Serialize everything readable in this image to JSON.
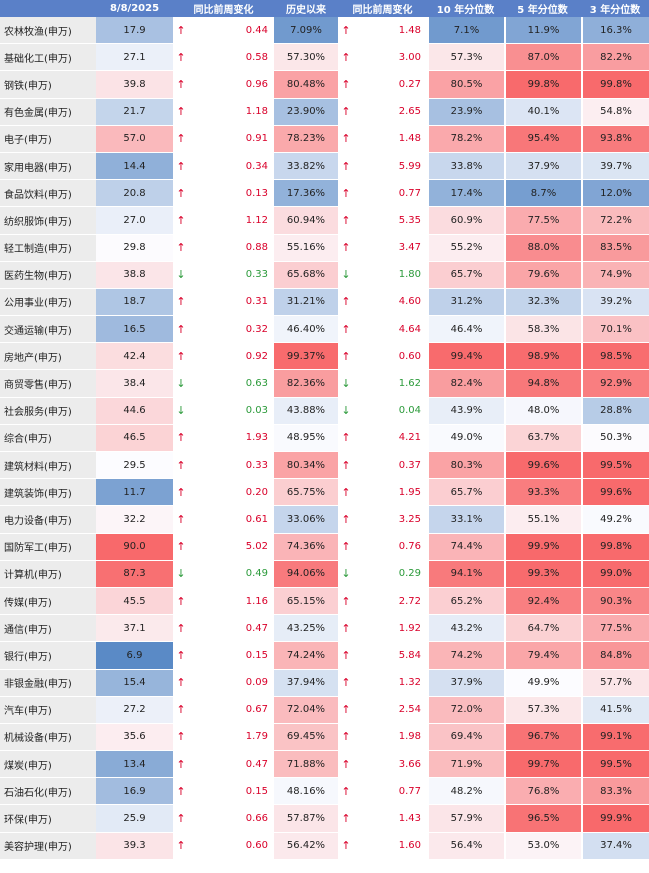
{
  "header": {
    "col0": "",
    "col1": "8/8/2025",
    "col2": "同比前周变化",
    "col3": "历史以来",
    "col4": "同比前周变化",
    "col5": "10 年分位数",
    "col6": "5 年分位数",
    "col7": "3 年分位数"
  },
  "colors": {
    "high": "#f8696b",
    "mid": "#fcfcff",
    "low": "#5a8ac6",
    "up": "#d9002a",
    "down": "#2b9a3a"
  },
  "rows": [
    {
      "name": "农林牧渔(申万)",
      "pe": "17.9",
      "a1": "↑",
      "d1": "up",
      "c1": "0.44",
      "hist": "7.09%",
      "a2": "↑",
      "d2": "up",
      "c2": "1.48",
      "p10": "7.1%",
      "p5": "11.9%",
      "p3": "16.3%"
    },
    {
      "name": "基础化工(申万)",
      "pe": "27.1",
      "a1": "↑",
      "d1": "up",
      "c1": "0.58",
      "hist": "57.30%",
      "a2": "↑",
      "d2": "up",
      "c2": "3.00",
      "p10": "57.3%",
      "p5": "87.0%",
      "p3": "82.2%"
    },
    {
      "name": "钢铁(申万)",
      "pe": "39.8",
      "a1": "↑",
      "d1": "up",
      "c1": "0.96",
      "hist": "80.48%",
      "a2": "↑",
      "d2": "up",
      "c2": "0.27",
      "p10": "80.5%",
      "p5": "99.8%",
      "p3": "99.8%"
    },
    {
      "name": "有色金属(申万)",
      "pe": "21.7",
      "a1": "↑",
      "d1": "up",
      "c1": "1.18",
      "hist": "23.90%",
      "a2": "↑",
      "d2": "up",
      "c2": "2.65",
      "p10": "23.9%",
      "p5": "40.1%",
      "p3": "54.8%"
    },
    {
      "name": "电子(申万)",
      "pe": "57.0",
      "a1": "↑",
      "d1": "up",
      "c1": "0.91",
      "hist": "78.23%",
      "a2": "↑",
      "d2": "up",
      "c2": "1.48",
      "p10": "78.2%",
      "p5": "95.4%",
      "p3": "93.8%"
    },
    {
      "name": "家用电器(申万)",
      "pe": "14.4",
      "a1": "↑",
      "d1": "up",
      "c1": "0.34",
      "hist": "33.82%",
      "a2": "↑",
      "d2": "up",
      "c2": "5.99",
      "p10": "33.8%",
      "p5": "37.9%",
      "p3": "39.7%"
    },
    {
      "name": "食品饮料(申万)",
      "pe": "20.8",
      "a1": "↑",
      "d1": "up",
      "c1": "0.13",
      "hist": "17.36%",
      "a2": "↑",
      "d2": "up",
      "c2": "0.77",
      "p10": "17.4%",
      "p5": "8.7%",
      "p3": "12.0%"
    },
    {
      "name": "纺织服饰(申万)",
      "pe": "27.0",
      "a1": "↑",
      "d1": "up",
      "c1": "1.12",
      "hist": "60.94%",
      "a2": "↑",
      "d2": "up",
      "c2": "5.35",
      "p10": "60.9%",
      "p5": "77.5%",
      "p3": "72.2%"
    },
    {
      "name": "轻工制造(申万)",
      "pe": "29.8",
      "a1": "↑",
      "d1": "up",
      "c1": "0.88",
      "hist": "55.16%",
      "a2": "↑",
      "d2": "up",
      "c2": "3.47",
      "p10": "55.2%",
      "p5": "88.0%",
      "p3": "83.5%"
    },
    {
      "name": "医药生物(申万)",
      "pe": "38.8",
      "a1": "↓",
      "d1": "down",
      "c1": "0.33",
      "hist": "65.68%",
      "a2": "↓",
      "d2": "down",
      "c2": "1.80",
      "p10": "65.7%",
      "p5": "79.6%",
      "p3": "74.9%"
    },
    {
      "name": "公用事业(申万)",
      "pe": "18.7",
      "a1": "↑",
      "d1": "up",
      "c1": "0.31",
      "hist": "31.21%",
      "a2": "↑",
      "d2": "up",
      "c2": "4.60",
      "p10": "31.2%",
      "p5": "32.3%",
      "p3": "39.2%"
    },
    {
      "name": "交通运输(申万)",
      "pe": "16.5",
      "a1": "↑",
      "d1": "up",
      "c1": "0.32",
      "hist": "46.40%",
      "a2": "↑",
      "d2": "up",
      "c2": "4.64",
      "p10": "46.4%",
      "p5": "58.3%",
      "p3": "70.1%"
    },
    {
      "name": "房地产(申万)",
      "pe": "42.4",
      "a1": "↑",
      "d1": "up",
      "c1": "0.92",
      "hist": "99.37%",
      "a2": "↑",
      "d2": "up",
      "c2": "0.60",
      "p10": "99.4%",
      "p5": "98.9%",
      "p3": "98.5%"
    },
    {
      "name": "商贸零售(申万)",
      "pe": "38.4",
      "a1": "↓",
      "d1": "down",
      "c1": "0.63",
      "hist": "82.36%",
      "a2": "↓",
      "d2": "down",
      "c2": "1.62",
      "p10": "82.4%",
      "p5": "94.8%",
      "p3": "92.9%"
    },
    {
      "name": "社会服务(申万)",
      "pe": "44.6",
      "a1": "↓",
      "d1": "down",
      "c1": "0.03",
      "hist": "43.88%",
      "a2": "↓",
      "d2": "down",
      "c2": "0.04",
      "p10": "43.9%",
      "p5": "48.0%",
      "p3": "28.8%"
    },
    {
      "name": "综合(申万)",
      "pe": "46.5",
      "a1": "↑",
      "d1": "up",
      "c1": "1.93",
      "hist": "48.95%",
      "a2": "↑",
      "d2": "up",
      "c2": "4.21",
      "p10": "49.0%",
      "p5": "63.7%",
      "p3": "50.3%"
    },
    {
      "name": "建筑材料(申万)",
      "pe": "29.5",
      "a1": "↑",
      "d1": "up",
      "c1": "0.33",
      "hist": "80.34%",
      "a2": "↑",
      "d2": "up",
      "c2": "0.37",
      "p10": "80.3%",
      "p5": "99.6%",
      "p3": "99.5%"
    },
    {
      "name": "建筑装饰(申万)",
      "pe": "11.7",
      "a1": "↑",
      "d1": "up",
      "c1": "0.20",
      "hist": "65.75%",
      "a2": "↑",
      "d2": "up",
      "c2": "1.95",
      "p10": "65.7%",
      "p5": "93.3%",
      "p3": "99.6%"
    },
    {
      "name": "电力设备(申万)",
      "pe": "32.2",
      "a1": "↑",
      "d1": "up",
      "c1": "0.61",
      "hist": "33.06%",
      "a2": "↑",
      "d2": "up",
      "c2": "3.25",
      "p10": "33.1%",
      "p5": "55.1%",
      "p3": "49.2%"
    },
    {
      "name": "国防军工(申万)",
      "pe": "90.0",
      "a1": "↑",
      "d1": "up",
      "c1": "5.02",
      "hist": "74.36%",
      "a2": "↑",
      "d2": "up",
      "c2": "0.76",
      "p10": "74.4%",
      "p5": "99.9%",
      "p3": "99.8%"
    },
    {
      "name": "计算机(申万)",
      "pe": "87.3",
      "a1": "↓",
      "d1": "down",
      "c1": "0.49",
      "hist": "94.06%",
      "a2": "↓",
      "d2": "down",
      "c2": "0.29",
      "p10": "94.1%",
      "p5": "99.3%",
      "p3": "99.0%"
    },
    {
      "name": "传媒(申万)",
      "pe": "45.5",
      "a1": "↑",
      "d1": "up",
      "c1": "1.16",
      "hist": "65.15%",
      "a2": "↑",
      "d2": "up",
      "c2": "2.72",
      "p10": "65.2%",
      "p5": "92.4%",
      "p3": "90.3%"
    },
    {
      "name": "通信(申万)",
      "pe": "37.1",
      "a1": "↑",
      "d1": "up",
      "c1": "0.47",
      "hist": "43.25%",
      "a2": "↑",
      "d2": "up",
      "c2": "1.92",
      "p10": "43.2%",
      "p5": "64.7%",
      "p3": "77.5%"
    },
    {
      "name": "银行(申万)",
      "pe": "6.9",
      "a1": "↑",
      "d1": "up",
      "c1": "0.15",
      "hist": "74.24%",
      "a2": "↑",
      "d2": "up",
      "c2": "5.84",
      "p10": "74.2%",
      "p5": "79.4%",
      "p3": "84.8%"
    },
    {
      "name": "非银金融(申万)",
      "pe": "15.4",
      "a1": "↑",
      "d1": "up",
      "c1": "0.09",
      "hist": "37.94%",
      "a2": "↑",
      "d2": "up",
      "c2": "1.32",
      "p10": "37.9%",
      "p5": "49.9%",
      "p3": "57.7%"
    },
    {
      "name": "汽车(申万)",
      "pe": "27.2",
      "a1": "↑",
      "d1": "up",
      "c1": "0.67",
      "hist": "72.04%",
      "a2": "↑",
      "d2": "up",
      "c2": "2.54",
      "p10": "72.0%",
      "p5": "57.3%",
      "p3": "41.5%"
    },
    {
      "name": "机械设备(申万)",
      "pe": "35.6",
      "a1": "↑",
      "d1": "up",
      "c1": "1.79",
      "hist": "69.45%",
      "a2": "↑",
      "d2": "up",
      "c2": "1.98",
      "p10": "69.4%",
      "p5": "96.7%",
      "p3": "99.1%"
    },
    {
      "name": "煤炭(申万)",
      "pe": "13.4",
      "a1": "↑",
      "d1": "up",
      "c1": "0.47",
      "hist": "71.88%",
      "a2": "↑",
      "d2": "up",
      "c2": "3.66",
      "p10": "71.9%",
      "p5": "99.7%",
      "p3": "99.5%"
    },
    {
      "name": "石油石化(申万)",
      "pe": "16.9",
      "a1": "↑",
      "d1": "up",
      "c1": "0.15",
      "hist": "48.16%",
      "a2": "↑",
      "d2": "up",
      "c2": "0.77",
      "p10": "48.2%",
      "p5": "76.8%",
      "p3": "83.3%"
    },
    {
      "name": "环保(申万)",
      "pe": "25.9",
      "a1": "↑",
      "d1": "up",
      "c1": "0.66",
      "hist": "57.87%",
      "a2": "↑",
      "d2": "up",
      "c2": "1.43",
      "p10": "57.9%",
      "p5": "96.5%",
      "p3": "99.9%"
    },
    {
      "name": "美容护理(申万)",
      "pe": "39.3",
      "a1": "↑",
      "d1": "up",
      "c1": "0.60",
      "hist": "56.42%",
      "a2": "↑",
      "d2": "up",
      "c2": "1.60",
      "p10": "56.4%",
      "p5": "53.0%",
      "p3": "37.4%"
    }
  ]
}
